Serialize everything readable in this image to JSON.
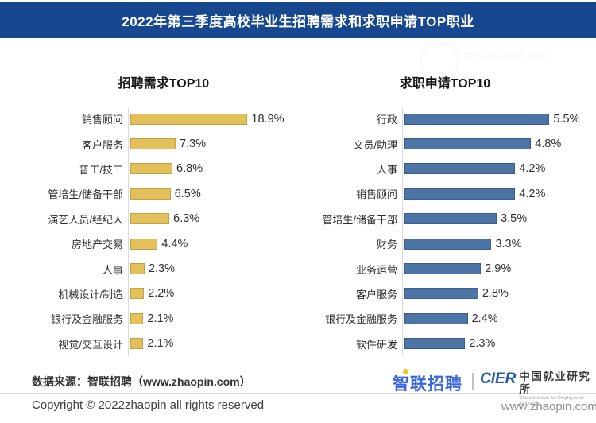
{
  "header": {
    "title": "2022年第三季度高校毕业生招聘需求和求职申请TOP职业"
  },
  "chart_data": [
    {
      "type": "bar",
      "orientation": "horizontal",
      "title": "招聘需求TOP10",
      "unit": "%",
      "bar_color": "#E4C05A",
      "categories": [
        "销售顾问",
        "客户服务",
        "普工/技工",
        "管培生/储备干部",
        "演艺人员/经纪人",
        "房地产交易",
        "人事",
        "机械设计/制造",
        "银行及金融服务",
        "视觉/交互设计"
      ],
      "values": [
        18.9,
        7.3,
        6.8,
        6.5,
        6.3,
        4.4,
        2.3,
        2.2,
        2.1,
        2.1
      ],
      "value_labels": [
        "18.9%",
        "7.3%",
        "6.8%",
        "6.5%",
        "6.3%",
        "4.4%",
        "2.3%",
        "2.2%",
        "2.1%",
        "2.1%"
      ],
      "xlim": [
        0,
        20
      ],
      "grid": false,
      "legend": false
    },
    {
      "type": "bar",
      "orientation": "horizontal",
      "title": "求职申请TOP10",
      "unit": "%",
      "bar_color": "#4C74A6",
      "categories": [
        "行政",
        "文员/助理",
        "人事",
        "销售顾问",
        "管培生/储备干部",
        "财务",
        "业务运营",
        "客户服务",
        "银行及金融服务",
        "软件研发"
      ],
      "values": [
        5.5,
        4.8,
        4.2,
        4.2,
        3.5,
        3.3,
        2.9,
        2.8,
        2.4,
        2.3
      ],
      "value_labels": [
        "5.5%",
        "4.8%",
        "4.2%",
        "4.2%",
        "3.5%",
        "3.3%",
        "2.9%",
        "2.8%",
        "2.4%",
        "2.3%"
      ],
      "xlim": [
        0,
        6
      ],
      "grid": false,
      "legend": false
    }
  ],
  "footer": {
    "source": "数据来源：智联招聘（www.zhaopin.com）",
    "copyright": "Copyright © 2022zhaopin all rights reserved",
    "url": "www.zhaopin.com"
  },
  "logos": {
    "zhaopin": "智联招聘",
    "cier_acronym": "CIER",
    "cier_cn": "中国就业研究所",
    "cier_en": "China Institute for Employment Research"
  },
  "watermark": {
    "url": "www.zhaopin.com"
  },
  "colors": {
    "header_bg": "#17478E",
    "demand_bar": "#E4C05A",
    "apply_bar": "#4C74A6",
    "axis_line": "#DBDBDB"
  }
}
